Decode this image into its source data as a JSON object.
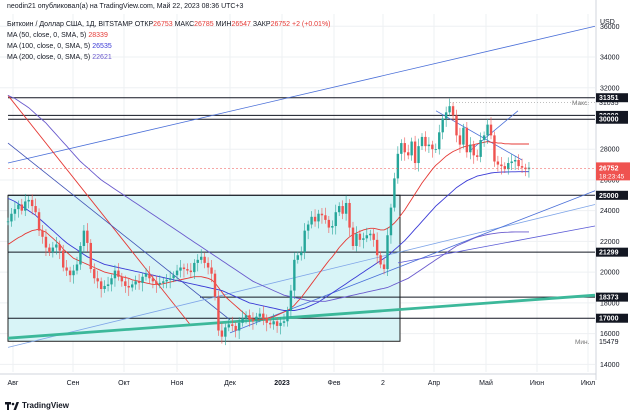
{
  "header": {
    "author_line": "neodin21 опубликовал(а) на TradingView.com, Май 22, 2023 08:36 UTC+3",
    "symbol": "Биткоин / Доллар США, 1Д, BITSTAMP",
    "open_label": "ОТКР",
    "open_value": "26753",
    "high_label": "МАКС",
    "high_value": "26785",
    "low_label": "МИН",
    "low_value": "26547",
    "close_label": "ЗАКР",
    "close_value": "26752",
    "change": "+2 (+0.01%)"
  },
  "indicators": [
    {
      "label": "MA (50, close, 0, SMA, 5)",
      "value": "28339",
      "color": "#e53935"
    },
    {
      "label": "MA (100, close, 0, SMA, 5)",
      "value": "26535",
      "color": "#3b3bd6"
    },
    {
      "label": "MA (200, close, 0, SMA, 5)",
      "value": "22621",
      "color": "#6a5acd"
    }
  ],
  "footer": {
    "logo_text": "TradingView"
  },
  "chart_data": {
    "type": "candlestick",
    "currency_label": "USD",
    "x_ticks": [
      "Авг",
      "Сен",
      "Окт",
      "Ноя",
      "Дек",
      "2023",
      "Фев",
      "2",
      "Апр",
      "Май",
      "Июн",
      "Июл"
    ],
    "y_ticks": [
      14000,
      16000,
      18000,
      20000,
      22000,
      24000,
      26000,
      28000,
      32000,
      34000,
      36000
    ],
    "ylim": [
      13500,
      36800
    ],
    "marked_levels": [
      {
        "label": "31351",
        "value": 31351
      },
      {
        "label": "30000",
        "value": 30200
      },
      {
        "label": "30000",
        "value": 29950
      },
      {
        "label": "25000",
        "value": 25000
      },
      {
        "label": "21299",
        "value": 21299
      },
      {
        "label": "18373",
        "value": 18373
      },
      {
        "label": "17000",
        "value": 17000
      }
    ],
    "current_price": {
      "value": "26752",
      "timer": "18:23:45",
      "price": 26752
    },
    "max_marker": {
      "label": "Макс.",
      "value": "31035",
      "price": 31035
    },
    "min_marker": {
      "label": "Мин.",
      "value": "15479",
      "price": 15479
    },
    "close_series": [
      23300,
      23800,
      24100,
      24400,
      24000,
      24600,
      24700,
      24300,
      23900,
      22700,
      22300,
      21600,
      21300,
      21600,
      21800,
      21400,
      20300,
      20100,
      19800,
      20100,
      20500,
      21700,
      22700,
      21900,
      20200,
      19600,
      19400,
      18900,
      19100,
      19200,
      19600,
      20100,
      19700,
      19400,
      19100,
      19000,
      19200,
      19400,
      19300,
      19700,
      19900,
      19600,
      19400,
      19200,
      19300,
      19400,
      19500,
      19600,
      19800,
      20100,
      20300,
      20200,
      20100,
      20000,
      20600,
      20800,
      21000,
      20600,
      20300,
      19900,
      18400,
      16200,
      15800,
      16400,
      16600,
      16500,
      16200,
      16700,
      17000,
      17200,
      16900,
      16800,
      17100,
      17300,
      17000,
      16700,
      16600,
      16800,
      16500,
      16700,
      16800,
      17500,
      18800,
      20800,
      21100,
      21300,
      22700,
      23100,
      23600,
      23300,
      23800,
      23700,
      23400,
      22900,
      23000,
      23900,
      24300,
      23800,
      24500,
      22900,
      21700,
      22500,
      22100,
      22200,
      22400,
      22500,
      22100,
      21100,
      20500,
      20200,
      22400,
      24200,
      26100,
      27700,
      28400,
      27800,
      27600,
      28500,
      27100,
      28200,
      28800,
      28200,
      28300,
      28000,
      28000,
      29100,
      30000,
      30400,
      30800,
      30200,
      28900,
      28300,
      29400,
      27800,
      28300,
      27600,
      27500,
      28600,
      28900,
      29600,
      28900,
      27200,
      27000,
      26900,
      26700,
      27100,
      27200,
      27300,
      26900,
      26800,
      26700,
      26800
    ],
    "moving_averages": [
      {
        "name": "MA 50",
        "color": "#e53935",
        "values": [
          21800,
          21950,
          22100,
          22250,
          22350,
          22500,
          22600,
          22700,
          22750,
          22800,
          22700,
          22600,
          22400,
          22200,
          22000,
          21800,
          21500,
          21300,
          21100,
          20900,
          20800,
          20700,
          20600,
          20500,
          20400,
          20300,
          20200,
          20100,
          20000,
          19950,
          19900,
          19850,
          19800,
          19700,
          19650,
          19600,
          19500,
          19450,
          19400,
          19350,
          19300,
          19250,
          19200,
          19200,
          19200,
          19250,
          19300,
          19350,
          19400,
          19450,
          19500,
          19550,
          19600,
          19650,
          19700,
          19700,
          19700,
          19650,
          19600,
          19500,
          19300,
          19000,
          18700,
          18400,
          18200,
          18000,
          17800,
          17600,
          17400,
          17200,
          17050,
          16950,
          16900,
          16900,
          16950,
          17000,
          17050,
          17100,
          17200,
          17300,
          17400,
          17500,
          17650,
          17850,
          18100,
          18350,
          18650,
          18950,
          19250,
          19550,
          19850,
          20150,
          20450,
          20750,
          21000,
          21300,
          21600,
          21850,
          22100,
          22300,
          22450,
          22550,
          22650,
          22750,
          22800,
          22850,
          22850,
          22800,
          22750,
          22750,
          22850,
          23000,
          23200,
          23450,
          23750,
          24050,
          24400,
          24750,
          25100,
          25450,
          25800,
          26100,
          26400,
          26700,
          26950,
          27150,
          27350,
          27550,
          27700,
          27850,
          27950,
          28050,
          28150,
          28200,
          28250,
          28300,
          28350,
          28400,
          28450,
          28500,
          28450,
          28450,
          28400,
          28400,
          28350,
          28350,
          28340,
          28340,
          28339,
          28339,
          28339,
          28339
        ]
      },
      {
        "name": "MA 100",
        "color": "#3b3bd6",
        "values": [
          24800,
          24700,
          24600,
          24450,
          24300,
          24150,
          24000,
          23850,
          23700,
          23500,
          23300,
          23100,
          22900,
          22700,
          22500,
          22300,
          22100,
          21900,
          21750,
          21600,
          21450,
          21300,
          21150,
          21000,
          20900,
          20800,
          20700,
          20600,
          20500,
          20450,
          20400,
          20350,
          20300,
          20250,
          20200,
          20150,
          20100,
          20050,
          20000,
          19950,
          19900,
          19850,
          19800,
          19750,
          19700,
          19650,
          19600,
          19550,
          19500,
          19450,
          19400,
          19350,
          19300,
          19250,
          19200,
          19150,
          19100,
          19050,
          19000,
          18950,
          18900,
          18850,
          18800,
          18700,
          18600,
          18500,
          18400,
          18300,
          18200,
          18100,
          18000,
          17950,
          17900,
          17850,
          17800,
          17750,
          17700,
          17650,
          17600,
          17550,
          17500,
          17500,
          17500,
          17500,
          17550,
          17600,
          17650,
          17750,
          17850,
          17950,
          18050,
          18200,
          18350,
          18500,
          18650,
          18800,
          18950,
          19100,
          19250,
          19400,
          19550,
          19700,
          19850,
          20000,
          20150,
          20300,
          20450,
          20600,
          20750,
          20900,
          21050,
          21250,
          21450,
          21650,
          21850,
          22050,
          22300,
          22550,
          22800,
          23050,
          23300,
          23550,
          23800,
          24050,
          24300,
          24500,
          24700,
          24900,
          25100,
          25300,
          25500,
          25650,
          25800,
          25950,
          26050,
          26150,
          26250,
          26300,
          26350,
          26400,
          26450,
          26480,
          26500,
          26510,
          26520,
          26525,
          26530,
          26532,
          26534,
          26535,
          26535,
          26535
        ]
      },
      {
        "name": "MA 200",
        "color": "#6a5acd",
        "values": [
          31500,
          31400,
          31300,
          31150,
          31000,
          30850,
          30700,
          30500,
          30300,
          30100,
          29900,
          29700,
          29450,
          29200,
          28950,
          28700,
          28450,
          28200,
          27950,
          27700,
          27450,
          27200,
          27000,
          26800,
          26600,
          26400,
          26200,
          26000,
          25850,
          25700,
          25550,
          25400,
          25250,
          25100,
          24950,
          24800,
          24650,
          24500,
          24350,
          24200,
          24050,
          23900,
          23750,
          23600,
          23450,
          23300,
          23150,
          23000,
          22850,
          22700,
          22550,
          22400,
          22250,
          22100,
          21950,
          21800,
          21650,
          21500,
          21350,
          21200,
          21050,
          20900,
          20750,
          20600,
          20450,
          20300,
          20150,
          20000,
          19850,
          19700,
          19550,
          19400,
          19300,
          19200,
          19100,
          19000,
          18900,
          18800,
          18700,
          18600,
          18500,
          18450,
          18400,
          18350,
          18300,
          18250,
          18200,
          18150,
          18100,
          18100,
          18100,
          18100,
          18100,
          18150,
          18200,
          18250,
          18300,
          18350,
          18400,
          18450,
          18500,
          18550,
          18600,
          18650,
          18700,
          18750,
          18800,
          18850,
          18900,
          18950,
          19000,
          19100,
          19200,
          19300,
          19400,
          19500,
          19600,
          19750,
          19900,
          20050,
          20200,
          20350,
          20500,
          20650,
          20800,
          20950,
          21100,
          21250,
          21400,
          21550,
          21700,
          21800,
          21900,
          22000,
          22100,
          22200,
          22280,
          22340,
          22400,
          22450,
          22490,
          22520,
          22550,
          22570,
          22590,
          22600,
          22610,
          22615,
          22618,
          22620,
          22621,
          22621
        ]
      }
    ]
  }
}
